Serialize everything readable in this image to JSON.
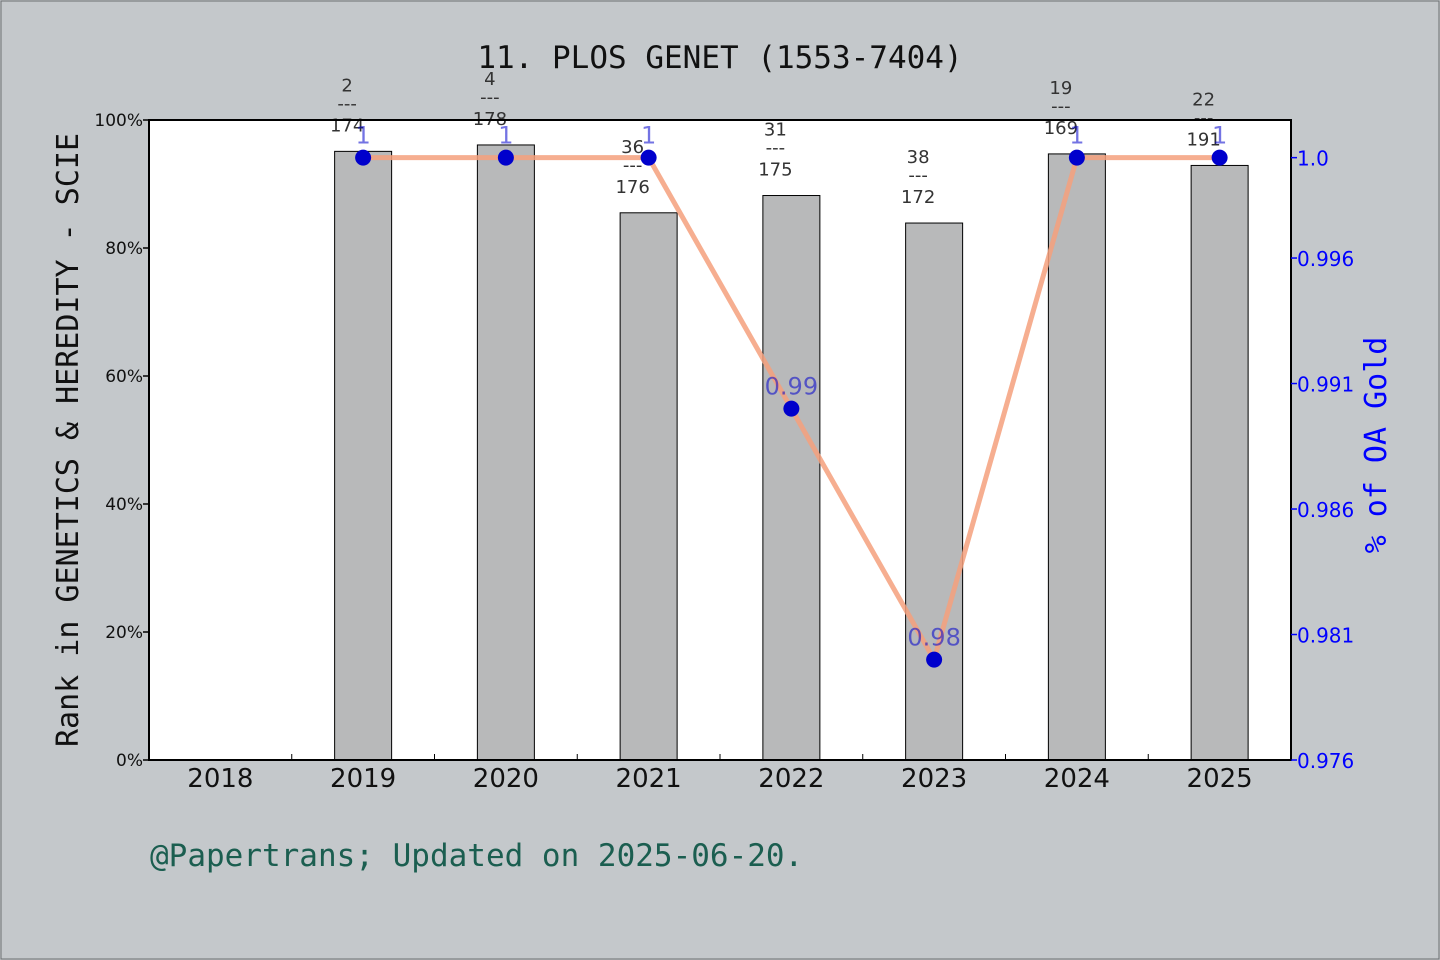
{
  "title": "11. PLOS GENET (1553-7404)",
  "footer": "@Papertrans; Updated on 2025-06-20.",
  "colors": {
    "background": "#c4c8cb",
    "bar": "#b8b9ba",
    "line": "#f4a07c",
    "marker": "#0000cc",
    "right_axis": "#0000ff",
    "footer": "#1b5e50",
    "rank_label": "#333333"
  },
  "chart_data": {
    "type": "bar",
    "categories": [
      "2018",
      "2019",
      "2020",
      "2021",
      "2022",
      "2023",
      "2024",
      "2025"
    ],
    "ylabel": "Rank in GENETICS & HEREDITY - SCIE",
    "y2label": "% of OA Gold",
    "ylim": [
      0,
      100
    ],
    "y2lim": [
      0.976,
      1.0015
    ],
    "yticks": [
      "0%",
      "20%",
      "40%",
      "60%",
      "80%",
      "100%"
    ],
    "y2ticks": [
      "0.976",
      "0.981",
      "0.986",
      "0.991",
      "0.996",
      "1.0"
    ],
    "y2tick_values": [
      0.976,
      0.981,
      0.986,
      0.991,
      0.996,
      1.0
    ],
    "series": [
      {
        "kind": "bar",
        "values": [
          null,
          95.1,
          96.1,
          85.5,
          88.2,
          83.9,
          94.7,
          92.9
        ],
        "rank_labels": [
          null,
          {
            "rank": "2",
            "total": "174"
          },
          {
            "rank": "4",
            "total": "178"
          },
          {
            "rank": "36",
            "total": "176"
          },
          {
            "rank": "31",
            "total": "175"
          },
          {
            "rank": "38",
            "total": "172"
          },
          {
            "rank": "19",
            "total": "169"
          },
          {
            "rank": "22",
            "total": "191"
          }
        ]
      },
      {
        "kind": "line",
        "axis": "right",
        "values": [
          null,
          1.0,
          1.0,
          1.0,
          0.99,
          0.98,
          1.0,
          1.0
        ],
        "labels": [
          null,
          "1",
          "1",
          "1",
          "0.99",
          "0.98",
          "1",
          "1"
        ]
      }
    ],
    "rank_separator": "---",
    "grid": false
  }
}
